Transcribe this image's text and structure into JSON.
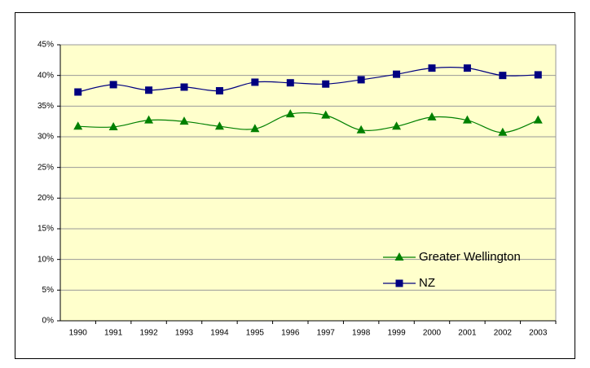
{
  "chart_data": {
    "type": "line",
    "categories": [
      "1990",
      "1991",
      "1992",
      "1993",
      "1994",
      "1995",
      "1996",
      "1997",
      "1998",
      "1999",
      "2000",
      "2001",
      "2002",
      "2003"
    ],
    "series": [
      {
        "name": "Greater Wellington",
        "color": "#008000",
        "marker": "triangle",
        "values": [
          31.7,
          31.6,
          32.7,
          32.5,
          31.7,
          31.3,
          33.7,
          33.5,
          31.1,
          31.7,
          33.2,
          32.7,
          30.7,
          32.7
        ]
      },
      {
        "name": "NZ",
        "color": "#000080",
        "marker": "square",
        "values": [
          37.3,
          38.5,
          37.6,
          38.1,
          37.5,
          38.9,
          38.8,
          38.6,
          39.3,
          40.2,
          41.2,
          41.2,
          40.0,
          40.1
        ]
      }
    ],
    "ylim": [
      0,
      45
    ],
    "yticks": [
      {
        "value": 0,
        "label": "0%"
      },
      {
        "value": 5,
        "label": "5%"
      },
      {
        "value": 10,
        "label": "10%"
      },
      {
        "value": 15,
        "label": "15%"
      },
      {
        "value": 20,
        "label": "20%"
      },
      {
        "value": 25,
        "label": "25%"
      },
      {
        "value": 30,
        "label": "30%"
      },
      {
        "value": 35,
        "label": "35%"
      },
      {
        "value": 40,
        "label": "40%"
      },
      {
        "value": 45,
        "label": "45%"
      }
    ],
    "grid": true,
    "smooth": true,
    "legend": "lower right",
    "plot_background": "#ffffcc"
  }
}
